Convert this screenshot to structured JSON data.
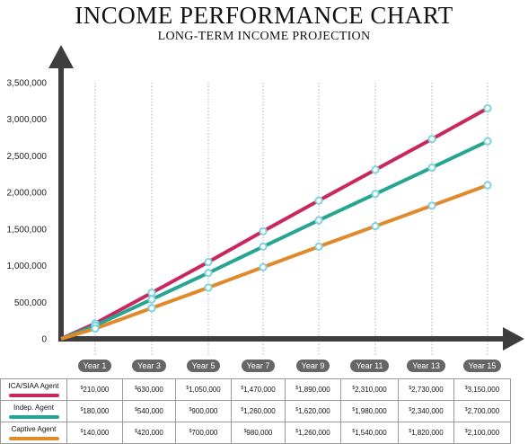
{
  "chart_data": {
    "type": "line",
    "title": "INCOME PERFORMANCE CHART",
    "subtitle": "LONG-TERM INCOME PROJECTION",
    "xlabel": "",
    "ylabel": "",
    "categories": [
      "Year 1",
      "Year 3",
      "Year 5",
      "Year 7",
      "Year 9",
      "Year 11",
      "Year 13",
      "Year 15"
    ],
    "ylim": [
      0,
      3500000
    ],
    "y_ticks": [
      "3,500,000",
      "3,000,000",
      "2,500,000",
      "2,000,000",
      "1,500,000",
      "1,000,000",
      "500,000",
      "0"
    ],
    "y_tick_values": [
      3500000,
      3000000,
      2500000,
      2000000,
      1500000,
      1000000,
      500000,
      0
    ],
    "lines_start_at_origin": true,
    "grid": true,
    "series": [
      {
        "name": "ICA/SIAA Agent",
        "color": "#c8285f",
        "values": [
          210000,
          630000,
          1050000,
          1470000,
          1890000,
          2310000,
          2730000,
          3150000
        ],
        "labels": [
          "210,000",
          "630,000",
          "1,050,000",
          "1,470,000",
          "1,890,000",
          "2,310,000",
          "2,730,000",
          "3,150,000"
        ]
      },
      {
        "name": "Indep. Agent",
        "color": "#27a593",
        "values": [
          180000,
          540000,
          900000,
          1260000,
          1620000,
          1980000,
          2340000,
          2700000
        ],
        "labels": [
          "180,000",
          "540,000",
          "900,000",
          "1,260,000",
          "1,620,000",
          "1,980,000",
          "2,340,000",
          "2,700,000"
        ]
      },
      {
        "name": "Captive Agent",
        "color": "#e08a2c",
        "values": [
          140000,
          420000,
          700000,
          980000,
          1260000,
          1540000,
          1820000,
          2100000
        ],
        "labels": [
          "140,000",
          "420,000",
          "700,000",
          "980,000",
          "1,260,000",
          "1,540,000",
          "1,820,000",
          "2,100,000"
        ]
      }
    ],
    "currency_symbol": "$",
    "axis_color": "#3e3e3e",
    "grid_color": "#b0b0b0",
    "marker_color": "#7fd3e0",
    "pill_color": "#666666"
  }
}
